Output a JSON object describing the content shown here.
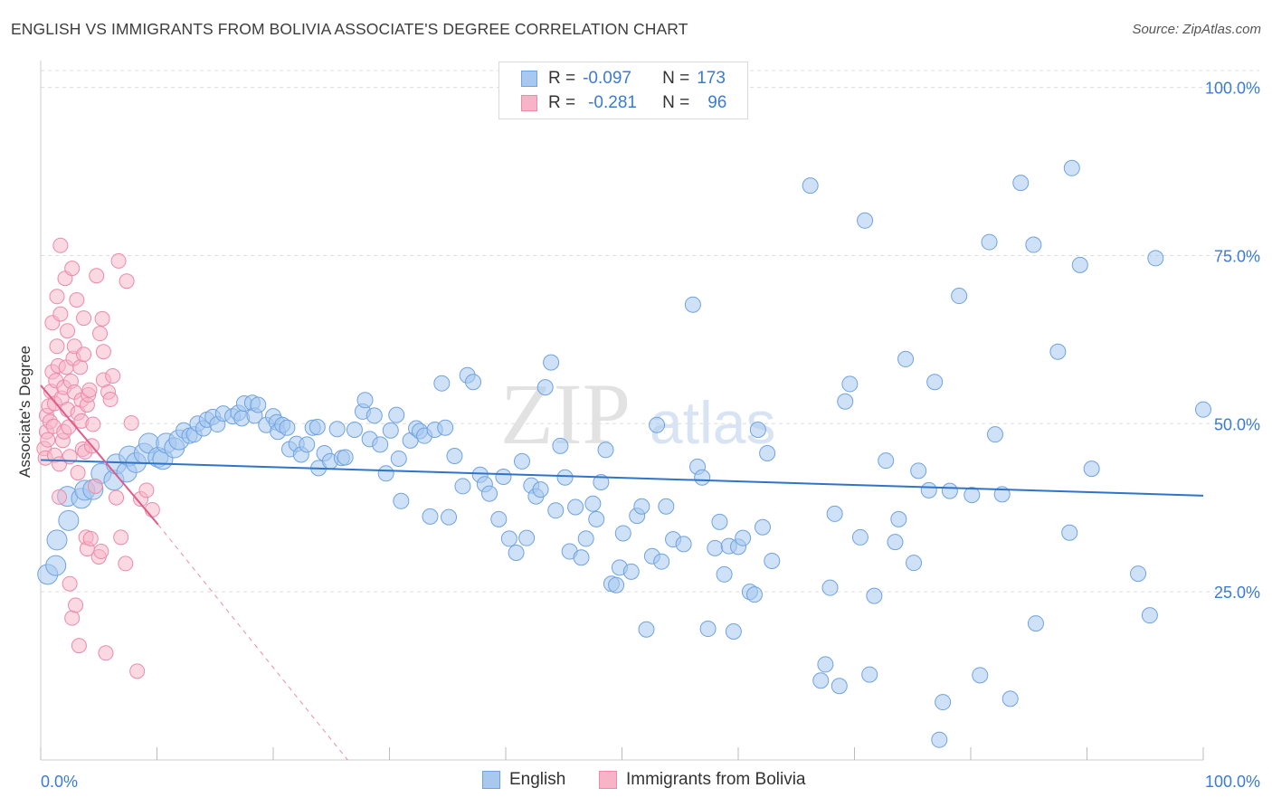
{
  "title": "ENGLISH VS IMMIGRANTS FROM BOLIVIA ASSOCIATE'S DEGREE CORRELATION CHART",
  "source": "Source: ZipAtlas.com",
  "watermark": {
    "zip": "ZIP",
    "atlas": "atlas"
  },
  "legend": {
    "english": {
      "r_label": "R =",
      "r_value": "-0.097",
      "n_label": "N =",
      "n_value": "173"
    },
    "bolivia": {
      "r_label": "R =",
      "r_value": "-0.281",
      "n_label": "N =",
      "n_value": "96"
    }
  },
  "colors": {
    "english_fill": "#a8c8f0",
    "english_stroke": "#6fa3e0",
    "english_line": "#2f74c8",
    "bolivia_fill": "#f7b3c8",
    "bolivia_stroke": "#ec8aa9",
    "bolivia_line": "#e05c8a",
    "axis_text": "#3a7bd5",
    "grid": "#dddddd"
  },
  "chart_data": {
    "type": "scatter",
    "title": "ENGLISH VS IMMIGRANTS FROM BOLIVIA ASSOCIATE'S DEGREE CORRELATION CHART",
    "xlabel": "",
    "ylabel": "Associate's Degree",
    "xlim": [
      0,
      100
    ],
    "ylim": [
      0,
      102.5
    ],
    "x_tick_labels": [
      "0.0%",
      "100.0%"
    ],
    "y_tick_labels": [
      "25.0%",
      "50.0%",
      "75.0%",
      "100.0%"
    ],
    "y_ticks": [
      25,
      50,
      75,
      100
    ],
    "grid": "horizontal dashed",
    "legend_position": "top-center",
    "series": [
      {
        "name": "English",
        "trend": {
          "x": [
            0,
            100
          ],
          "y": [
            44.6,
            39.3
          ]
        },
        "points": [
          [
            0.6,
            27.6
          ],
          [
            1.3,
            28.9
          ],
          [
            1.4,
            32.7
          ],
          [
            2.3,
            39.2
          ],
          [
            2.4,
            35.6
          ],
          [
            3.5,
            38.9
          ],
          [
            3.8,
            40.1
          ],
          [
            4.5,
            40.2
          ],
          [
            5.2,
            42.6
          ],
          [
            6.3,
            41.6
          ],
          [
            6.5,
            44.0
          ],
          [
            7.4,
            42.8
          ],
          [
            7.6,
            45.2
          ],
          [
            8.2,
            44.2
          ],
          [
            8.9,
            45.6
          ],
          [
            9.3,
            47.1
          ],
          [
            10.1,
            45.0
          ],
          [
            10.5,
            44.7
          ],
          [
            10.8,
            47.1
          ],
          [
            11.5,
            46.4
          ],
          [
            11.9,
            47.6
          ],
          [
            12.3,
            49.0
          ],
          [
            12.8,
            48.2
          ],
          [
            13.2,
            48.4
          ],
          [
            13.5,
            50.0
          ],
          [
            14.0,
            49.3
          ],
          [
            14.3,
            50.6
          ],
          [
            14.8,
            51.0
          ],
          [
            15.2,
            49.9
          ],
          [
            15.7,
            51.5
          ],
          [
            16.5,
            51.1
          ],
          [
            17.0,
            51.6
          ],
          [
            17.3,
            50.8
          ],
          [
            17.5,
            53.0
          ],
          [
            18.2,
            53.1
          ],
          [
            18.4,
            51.2
          ],
          [
            18.7,
            52.8
          ],
          [
            19.4,
            49.8
          ],
          [
            20.0,
            51.1
          ],
          [
            20.3,
            50.2
          ],
          [
            20.4,
            48.8
          ],
          [
            20.8,
            49.8
          ],
          [
            21.2,
            49.4
          ],
          [
            21.4,
            46.2
          ],
          [
            22.0,
            47.0
          ],
          [
            22.4,
            45.4
          ],
          [
            22.9,
            46.9
          ],
          [
            23.4,
            49.4
          ],
          [
            23.8,
            49.5
          ],
          [
            23.9,
            43.4
          ],
          [
            24.4,
            45.6
          ],
          [
            24.9,
            44.4
          ],
          [
            25.5,
            49.2
          ],
          [
            25.9,
            44.9
          ],
          [
            26.2,
            45.0
          ],
          [
            27.0,
            49.1
          ],
          [
            27.7,
            51.8
          ],
          [
            27.9,
            53.5
          ],
          [
            28.3,
            47.7
          ],
          [
            28.7,
            51.2
          ],
          [
            29.2,
            46.9
          ],
          [
            29.7,
            42.6
          ],
          [
            30.1,
            49.0
          ],
          [
            30.6,
            51.3
          ],
          [
            30.8,
            44.8
          ],
          [
            31.0,
            38.5
          ],
          [
            31.8,
            47.5
          ],
          [
            32.3,
            49.3
          ],
          [
            32.6,
            48.9
          ],
          [
            33.0,
            48.2
          ],
          [
            33.5,
            36.2
          ],
          [
            33.9,
            49.1
          ],
          [
            34.5,
            56.0
          ],
          [
            34.8,
            49.4
          ],
          [
            35.1,
            36.1
          ],
          [
            35.6,
            45.2
          ],
          [
            36.3,
            40.7
          ],
          [
            36.7,
            57.2
          ],
          [
            37.2,
            56.2
          ],
          [
            37.8,
            42.4
          ],
          [
            38.2,
            41.0
          ],
          [
            38.6,
            39.6
          ],
          [
            39.4,
            35.8
          ],
          [
            39.8,
            42.1
          ],
          [
            40.3,
            32.9
          ],
          [
            40.9,
            30.8
          ],
          [
            41.4,
            44.4
          ],
          [
            41.8,
            33.0
          ],
          [
            42.2,
            40.8
          ],
          [
            42.6,
            39.2
          ],
          [
            43.0,
            40.2
          ],
          [
            43.4,
            55.4
          ],
          [
            43.9,
            59.1
          ],
          [
            44.3,
            37.1
          ],
          [
            44.7,
            46.7
          ],
          [
            45.1,
            42.0
          ],
          [
            45.5,
            31.0
          ],
          [
            46.0,
            37.6
          ],
          [
            46.5,
            30.1
          ],
          [
            46.9,
            32.9
          ],
          [
            47.5,
            38.1
          ],
          [
            47.8,
            35.8
          ],
          [
            48.2,
            41.3
          ],
          [
            48.6,
            46.1
          ],
          [
            49.1,
            26.2
          ],
          [
            49.5,
            26.0
          ],
          [
            49.8,
            28.6
          ],
          [
            50.1,
            33.7
          ],
          [
            50.8,
            28.0
          ],
          [
            51.3,
            36.3
          ],
          [
            51.7,
            37.7
          ],
          [
            52.1,
            19.4
          ],
          [
            52.6,
            30.3
          ],
          [
            53.0,
            49.8
          ],
          [
            53.4,
            29.5
          ],
          [
            53.8,
            37.7
          ],
          [
            54.4,
            32.8
          ],
          [
            55.3,
            32.1
          ],
          [
            56.1,
            67.7
          ],
          [
            56.5,
            43.6
          ],
          [
            56.9,
            42.0
          ],
          [
            57.4,
            19.5
          ],
          [
            58.0,
            31.5
          ],
          [
            58.4,
            35.4
          ],
          [
            58.8,
            27.6
          ],
          [
            59.2,
            31.8
          ],
          [
            59.6,
            19.1
          ],
          [
            60.0,
            31.7
          ],
          [
            60.4,
            33.0
          ],
          [
            61.0,
            25.0
          ],
          [
            61.4,
            24.6
          ],
          [
            61.7,
            49.1
          ],
          [
            62.1,
            34.6
          ],
          [
            62.5,
            45.6
          ],
          [
            62.9,
            29.6
          ],
          [
            66.2,
            85.4
          ],
          [
            67.1,
            11.8
          ],
          [
            67.5,
            14.2
          ],
          [
            67.9,
            25.6
          ],
          [
            68.3,
            36.6
          ],
          [
            68.7,
            11.0
          ],
          [
            69.2,
            53.3
          ],
          [
            69.6,
            55.9
          ],
          [
            70.5,
            33.1
          ],
          [
            70.9,
            80.2
          ],
          [
            71.3,
            12.7
          ],
          [
            71.7,
            24.4
          ],
          [
            72.7,
            44.5
          ],
          [
            73.5,
            32.4
          ],
          [
            73.8,
            35.8
          ],
          [
            74.4,
            59.6
          ],
          [
            75.1,
            29.3
          ],
          [
            75.5,
            43.0
          ],
          [
            76.4,
            40.1
          ],
          [
            76.9,
            56.2
          ],
          [
            77.3,
            3.0
          ],
          [
            77.6,
            8.6
          ],
          [
            78.2,
            40.0
          ],
          [
            79.0,
            69.0
          ],
          [
            80.1,
            39.4
          ],
          [
            80.8,
            12.6
          ],
          [
            81.6,
            77.0
          ],
          [
            82.1,
            48.4
          ],
          [
            82.7,
            39.5
          ],
          [
            83.4,
            9.1
          ],
          [
            84.3,
            85.8
          ],
          [
            85.4,
            76.6
          ],
          [
            85.6,
            20.3
          ],
          [
            87.5,
            60.7
          ],
          [
            88.5,
            33.8
          ],
          [
            88.7,
            88.0
          ],
          [
            89.4,
            73.6
          ],
          [
            90.4,
            43.3
          ],
          [
            94.4,
            27.7
          ],
          [
            95.4,
            21.5
          ],
          [
            95.9,
            74.6
          ],
          [
            100.0,
            52.1
          ]
        ]
      },
      {
        "name": "Immigrants from Bolivia",
        "trend": {
          "x": [
            0,
            10.1
          ],
          "y": [
            55.7,
            35.0
          ],
          "dash_to": [
            26.4,
            0
          ]
        },
        "points": [
          [
            0.3,
            46.3
          ],
          [
            0.4,
            44.9
          ],
          [
            0.5,
            48.8
          ],
          [
            0.5,
            51.2
          ],
          [
            0.6,
            47.6
          ],
          [
            0.7,
            52.6
          ],
          [
            0.8,
            50.3
          ],
          [
            0.9,
            54.8
          ],
          [
            1.0,
            57.7
          ],
          [
            1.0,
            65.0
          ],
          [
            1.1,
            49.6
          ],
          [
            1.2,
            45.3
          ],
          [
            1.2,
            53.0
          ],
          [
            1.3,
            56.4
          ],
          [
            1.4,
            61.5
          ],
          [
            1.4,
            68.9
          ],
          [
            1.5,
            58.6
          ],
          [
            1.6,
            44.0
          ],
          [
            1.6,
            39.1
          ],
          [
            1.7,
            76.5
          ],
          [
            1.7,
            66.3
          ],
          [
            1.8,
            53.8
          ],
          [
            1.9,
            47.5
          ],
          [
            2.0,
            48.8
          ],
          [
            2.0,
            55.4
          ],
          [
            2.1,
            71.6
          ],
          [
            2.2,
            58.4
          ],
          [
            2.3,
            63.8
          ],
          [
            2.3,
            52.1
          ],
          [
            2.4,
            49.5
          ],
          [
            2.5,
            26.2
          ],
          [
            2.5,
            45.1
          ],
          [
            2.6,
            56.3
          ],
          [
            2.7,
            21.1
          ],
          [
            2.7,
            73.1
          ],
          [
            2.8,
            59.7
          ],
          [
            2.9,
            54.7
          ],
          [
            2.9,
            61.5
          ],
          [
            3.0,
            23.0
          ],
          [
            3.1,
            68.4
          ],
          [
            3.2,
            42.7
          ],
          [
            3.2,
            51.6
          ],
          [
            3.3,
            17.0
          ],
          [
            3.4,
            58.4
          ],
          [
            3.5,
            50.4
          ],
          [
            3.5,
            53.5
          ],
          [
            3.6,
            46.2
          ],
          [
            3.7,
            60.3
          ],
          [
            3.7,
            65.7
          ],
          [
            3.8,
            45.8
          ],
          [
            3.9,
            33.1
          ],
          [
            4.0,
            31.4
          ],
          [
            4.0,
            52.8
          ],
          [
            4.1,
            54.3
          ],
          [
            4.2,
            55.0
          ],
          [
            4.3,
            32.9
          ],
          [
            4.4,
            46.7
          ],
          [
            4.5,
            49.9
          ],
          [
            4.7,
            40.7
          ],
          [
            4.8,
            72.0
          ],
          [
            5.0,
            30.2
          ],
          [
            5.1,
            63.4
          ],
          [
            5.2,
            31.0
          ],
          [
            5.3,
            65.6
          ],
          [
            5.4,
            56.5
          ],
          [
            5.4,
            60.7
          ],
          [
            5.6,
            15.9
          ],
          [
            5.8,
            54.7
          ],
          [
            6.0,
            53.6
          ],
          [
            6.2,
            57.1
          ],
          [
            6.5,
            39.0
          ],
          [
            6.7,
            74.2
          ],
          [
            6.9,
            33.1
          ],
          [
            7.3,
            29.2
          ],
          [
            7.4,
            71.2
          ],
          [
            7.8,
            50.1
          ],
          [
            8.3,
            13.2
          ],
          [
            8.6,
            38.8
          ],
          [
            9.1,
            40.1
          ],
          [
            9.6,
            37.2
          ]
        ]
      }
    ]
  }
}
